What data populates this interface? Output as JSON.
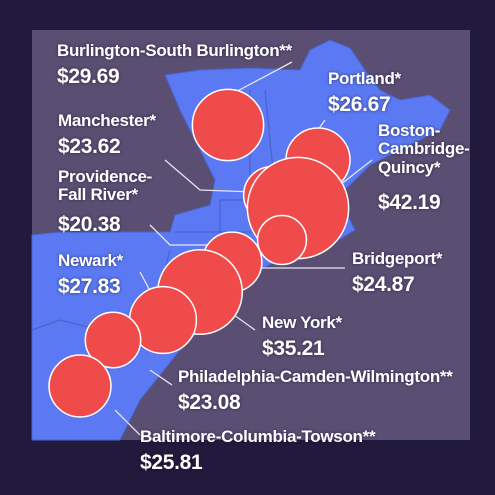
{
  "chart_data": {
    "type": "bubble",
    "categories": [
      "Burlington-South Burlington**",
      "Portland*",
      "Manchester*",
      "Boston-Cambridge-Quincy*",
      "Providence-Fall River*",
      "Bridgeport*",
      "New York*",
      "Newark*",
      "Philadelphia-Camden-Wilmington**",
      "Baltimore-Columbia-Towson**"
    ],
    "values": [
      29.69,
      26.67,
      23.62,
      42.19,
      20.38,
      24.87,
      35.21,
      27.83,
      23.08,
      25.81
    ],
    "value_labels": [
      "$29.69",
      "$26.67",
      "$23.62",
      "$42.19",
      "$20.38",
      "$24.87",
      "$35.21",
      "$27.83",
      "$23.08",
      "$25.81"
    ],
    "color": "#ef4b4b"
  }
}
